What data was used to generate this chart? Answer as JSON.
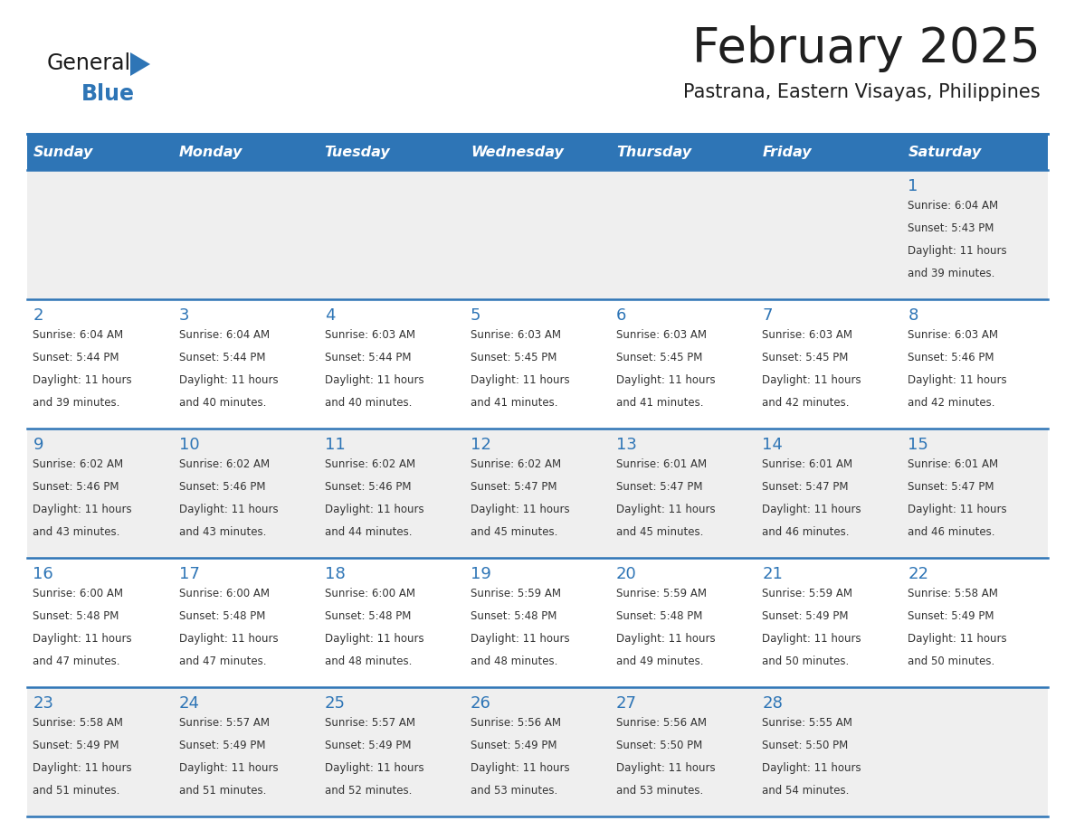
{
  "title": "February 2025",
  "subtitle": "Pastrana, Eastern Visayas, Philippines",
  "header_bg": "#2E75B6",
  "header_text_color": "#FFFFFF",
  "cell_bg_odd": "#EFEFEF",
  "cell_bg_even": "#FFFFFF",
  "border_color": "#2E75B6",
  "day_names": [
    "Sunday",
    "Monday",
    "Tuesday",
    "Wednesday",
    "Thursday",
    "Friday",
    "Saturday"
  ],
  "title_color": "#1F1F1F",
  "subtitle_color": "#1F1F1F",
  "day_num_color": "#2E75B6",
  "info_color": "#333333",
  "logo_general_color": "#1A1A1A",
  "logo_blue_color": "#2E75B6",
  "logo_triangle_color": "#2E75B6",
  "weeks": [
    [
      {
        "day": 0,
        "sunrise": "",
        "sunset": "",
        "daylight_h": "",
        "daylight_m": ""
      },
      {
        "day": 0,
        "sunrise": "",
        "sunset": "",
        "daylight_h": "",
        "daylight_m": ""
      },
      {
        "day": 0,
        "sunrise": "",
        "sunset": "",
        "daylight_h": "",
        "daylight_m": ""
      },
      {
        "day": 0,
        "sunrise": "",
        "sunset": "",
        "daylight_h": "",
        "daylight_m": ""
      },
      {
        "day": 0,
        "sunrise": "",
        "sunset": "",
        "daylight_h": "",
        "daylight_m": ""
      },
      {
        "day": 0,
        "sunrise": "",
        "sunset": "",
        "daylight_h": "",
        "daylight_m": ""
      },
      {
        "day": 1,
        "sunrise": "6:04 AM",
        "sunset": "5:43 PM",
        "daylight_h": "11 hours",
        "daylight_m": "and 39 minutes."
      }
    ],
    [
      {
        "day": 2,
        "sunrise": "6:04 AM",
        "sunset": "5:44 PM",
        "daylight_h": "11 hours",
        "daylight_m": "and 39 minutes."
      },
      {
        "day": 3,
        "sunrise": "6:04 AM",
        "sunset": "5:44 PM",
        "daylight_h": "11 hours",
        "daylight_m": "and 40 minutes."
      },
      {
        "day": 4,
        "sunrise": "6:03 AM",
        "sunset": "5:44 PM",
        "daylight_h": "11 hours",
        "daylight_m": "and 40 minutes."
      },
      {
        "day": 5,
        "sunrise": "6:03 AM",
        "sunset": "5:45 PM",
        "daylight_h": "11 hours",
        "daylight_m": "and 41 minutes."
      },
      {
        "day": 6,
        "sunrise": "6:03 AM",
        "sunset": "5:45 PM",
        "daylight_h": "11 hours",
        "daylight_m": "and 41 minutes."
      },
      {
        "day": 7,
        "sunrise": "6:03 AM",
        "sunset": "5:45 PM",
        "daylight_h": "11 hours",
        "daylight_m": "and 42 minutes."
      },
      {
        "day": 8,
        "sunrise": "6:03 AM",
        "sunset": "5:46 PM",
        "daylight_h": "11 hours",
        "daylight_m": "and 42 minutes."
      }
    ],
    [
      {
        "day": 9,
        "sunrise": "6:02 AM",
        "sunset": "5:46 PM",
        "daylight_h": "11 hours",
        "daylight_m": "and 43 minutes."
      },
      {
        "day": 10,
        "sunrise": "6:02 AM",
        "sunset": "5:46 PM",
        "daylight_h": "11 hours",
        "daylight_m": "and 43 minutes."
      },
      {
        "day": 11,
        "sunrise": "6:02 AM",
        "sunset": "5:46 PM",
        "daylight_h": "11 hours",
        "daylight_m": "and 44 minutes."
      },
      {
        "day": 12,
        "sunrise": "6:02 AM",
        "sunset": "5:47 PM",
        "daylight_h": "11 hours",
        "daylight_m": "and 45 minutes."
      },
      {
        "day": 13,
        "sunrise": "6:01 AM",
        "sunset": "5:47 PM",
        "daylight_h": "11 hours",
        "daylight_m": "and 45 minutes."
      },
      {
        "day": 14,
        "sunrise": "6:01 AM",
        "sunset": "5:47 PM",
        "daylight_h": "11 hours",
        "daylight_m": "and 46 minutes."
      },
      {
        "day": 15,
        "sunrise": "6:01 AM",
        "sunset": "5:47 PM",
        "daylight_h": "11 hours",
        "daylight_m": "and 46 minutes."
      }
    ],
    [
      {
        "day": 16,
        "sunrise": "6:00 AM",
        "sunset": "5:48 PM",
        "daylight_h": "11 hours",
        "daylight_m": "and 47 minutes."
      },
      {
        "day": 17,
        "sunrise": "6:00 AM",
        "sunset": "5:48 PM",
        "daylight_h": "11 hours",
        "daylight_m": "and 47 minutes."
      },
      {
        "day": 18,
        "sunrise": "6:00 AM",
        "sunset": "5:48 PM",
        "daylight_h": "11 hours",
        "daylight_m": "and 48 minutes."
      },
      {
        "day": 19,
        "sunrise": "5:59 AM",
        "sunset": "5:48 PM",
        "daylight_h": "11 hours",
        "daylight_m": "and 48 minutes."
      },
      {
        "day": 20,
        "sunrise": "5:59 AM",
        "sunset": "5:48 PM",
        "daylight_h": "11 hours",
        "daylight_m": "and 49 minutes."
      },
      {
        "day": 21,
        "sunrise": "5:59 AM",
        "sunset": "5:49 PM",
        "daylight_h": "11 hours",
        "daylight_m": "and 50 minutes."
      },
      {
        "day": 22,
        "sunrise": "5:58 AM",
        "sunset": "5:49 PM",
        "daylight_h": "11 hours",
        "daylight_m": "and 50 minutes."
      }
    ],
    [
      {
        "day": 23,
        "sunrise": "5:58 AM",
        "sunset": "5:49 PM",
        "daylight_h": "11 hours",
        "daylight_m": "and 51 minutes."
      },
      {
        "day": 24,
        "sunrise": "5:57 AM",
        "sunset": "5:49 PM",
        "daylight_h": "11 hours",
        "daylight_m": "and 51 minutes."
      },
      {
        "day": 25,
        "sunrise": "5:57 AM",
        "sunset": "5:49 PM",
        "daylight_h": "11 hours",
        "daylight_m": "and 52 minutes."
      },
      {
        "day": 26,
        "sunrise": "5:56 AM",
        "sunset": "5:49 PM",
        "daylight_h": "11 hours",
        "daylight_m": "and 53 minutes."
      },
      {
        "day": 27,
        "sunrise": "5:56 AM",
        "sunset": "5:50 PM",
        "daylight_h": "11 hours",
        "daylight_m": "and 53 minutes."
      },
      {
        "day": 28,
        "sunrise": "5:55 AM",
        "sunset": "5:50 PM",
        "daylight_h": "11 hours",
        "daylight_m": "and 54 minutes."
      },
      {
        "day": 0,
        "sunrise": "",
        "sunset": "",
        "daylight_h": "",
        "daylight_m": ""
      }
    ]
  ]
}
